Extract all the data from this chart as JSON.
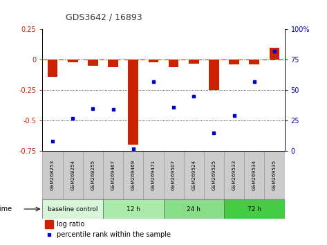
{
  "title": "GDS3642 / 16893",
  "samples": [
    "GSM268253",
    "GSM268254",
    "GSM268255",
    "GSM269467",
    "GSM269469",
    "GSM269471",
    "GSM269507",
    "GSM269524",
    "GSM269525",
    "GSM269533",
    "GSM269534",
    "GSM269535"
  ],
  "log_ratio": [
    -0.14,
    -0.02,
    -0.05,
    -0.06,
    -0.7,
    -0.02,
    -0.06,
    -0.03,
    -0.25,
    -0.04,
    -0.04,
    0.1
  ],
  "percentile_rank": [
    8,
    27,
    35,
    34,
    2,
    57,
    36,
    45,
    15,
    29,
    57,
    82
  ],
  "groups": [
    {
      "label": "baseline control",
      "start": 0,
      "end": 2,
      "color": "#d9f5d9"
    },
    {
      "label": "12 h",
      "start": 3,
      "end": 5,
      "color": "#aaeaaa"
    },
    {
      "label": "24 h",
      "start": 6,
      "end": 8,
      "color": "#88dd88"
    },
    {
      "label": "72 h",
      "start": 9,
      "end": 11,
      "color": "#44cc44"
    }
  ],
  "ylim_left": [
    -0.75,
    0.25
  ],
  "ylim_right": [
    0,
    100
  ],
  "left_ticks": [
    0.25,
    0,
    -0.25,
    -0.5,
    -0.75
  ],
  "right_ticks": [
    100,
    75,
    50,
    25,
    0
  ],
  "bar_color": "#cc2200",
  "dot_color": "#0000cc",
  "hline_y": 0,
  "dotted_lines": [
    -0.25,
    -0.5
  ],
  "left_tick_color": "#cc2200",
  "right_tick_color": "#0000cc",
  "bar_width": 0.5,
  "sample_box_color": "#cccccc",
  "sample_box_edge": "#999999"
}
